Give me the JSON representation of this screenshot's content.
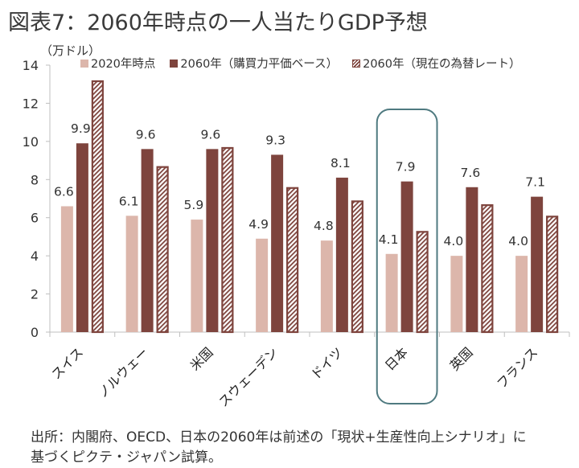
{
  "title": "図表7：2060年時点の一人当たりGDP予想",
  "unit_label": "（万ドル）",
  "legend": [
    {
      "label": "2020年時点",
      "color": "#dcb6ab",
      "style": "solid"
    },
    {
      "label": "2060年（購買力平価ベース）",
      "color": "#7e443d",
      "style": "solid"
    },
    {
      "label": "2060年（現在の為替レート）",
      "color": "#7e443d",
      "style": "hatched"
    }
  ],
  "chart_data": {
    "type": "bar",
    "title": "図表7：2060年時点の一人当たりGDP予想",
    "xlabel": "",
    "ylabel": "（万ドル）",
    "ylim": [
      0,
      14
    ],
    "yticks": [
      0,
      2,
      4,
      6,
      8,
      10,
      12,
      14
    ],
    "grid": false,
    "legend_position": "top",
    "categories": [
      "スイス",
      "ノルウェー",
      "米国",
      "スウェーデン",
      "ドイツ",
      "日本",
      "英国",
      "フランス"
    ],
    "highlighted_category": "日本",
    "series": [
      {
        "name": "2020年時点",
        "color": "#dcb6ab",
        "pattern": "solid",
        "labeled": true,
        "values": [
          6.6,
          6.1,
          5.9,
          4.9,
          4.8,
          4.1,
          4.0,
          4.0
        ]
      },
      {
        "name": "2060年（購買力平価ベース）",
        "color": "#7e443d",
        "pattern": "solid",
        "labeled": true,
        "values": [
          9.9,
          9.6,
          9.6,
          9.3,
          8.1,
          7.9,
          7.6,
          7.1
        ]
      },
      {
        "name": "2060年（現在の為替レート）",
        "color": "#7e443d",
        "pattern": "hatched",
        "labeled": false,
        "values": [
          13.2,
          8.7,
          9.7,
          7.6,
          6.9,
          5.3,
          6.7,
          6.1
        ]
      }
    ],
    "data_labels": [
      "6.6",
      "9.9",
      "6.1",
      "9.6",
      "5.9",
      "9.6",
      "4.9",
      "9.3",
      "4.8",
      "8.1",
      "4.1",
      "7.9",
      "4.0",
      "7.6",
      "4.0",
      "7.1"
    ]
  },
  "footnote": {
    "line1": "出所：内閣府、OECD、日本の2060年は前述の「現状+生産性向上シナリオ」に",
    "line2": "基づくピクテ・ジャパン試算。"
  },
  "colors": {
    "highlight_box": "#4f7a80",
    "axis": "#bfbfbf"
  }
}
